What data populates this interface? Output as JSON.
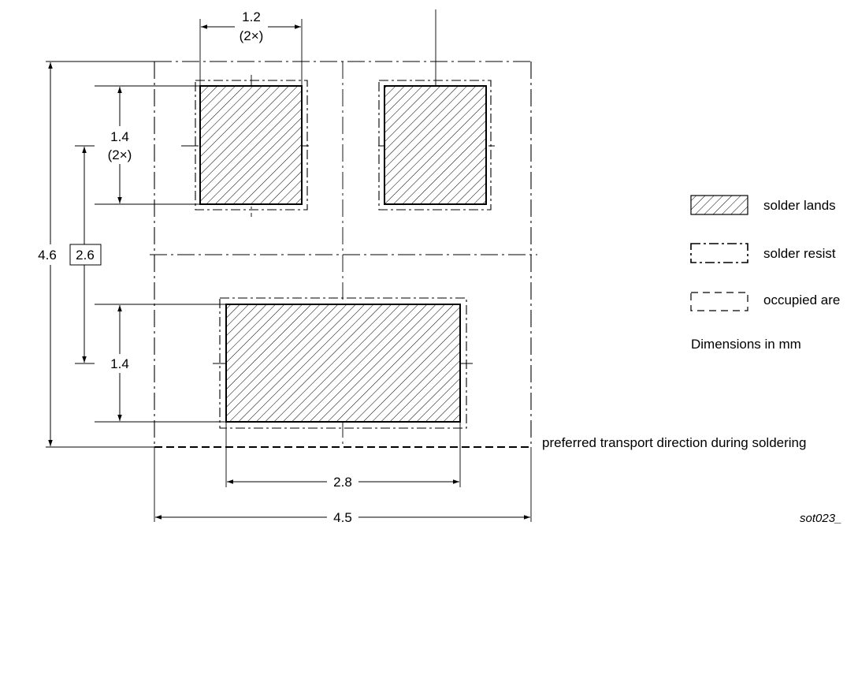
{
  "dimensions": {
    "pad_width": "1.2",
    "pad_width_count": "(2×)",
    "pad_height": "1.4",
    "pad_height_count": "(2×)",
    "overall_height": "4.6",
    "pitch": "2.6",
    "tab_height": "1.4",
    "tab_width": "2.8",
    "overall_width": "4.5"
  },
  "legend": {
    "solder_lands": "solder lands",
    "solder_resist": "solder resist",
    "occupied_area": "occupied are"
  },
  "units_note": "Dimensions in mm",
  "transport_note": "preferred transport direction during soldering",
  "reference": "sot023_"
}
